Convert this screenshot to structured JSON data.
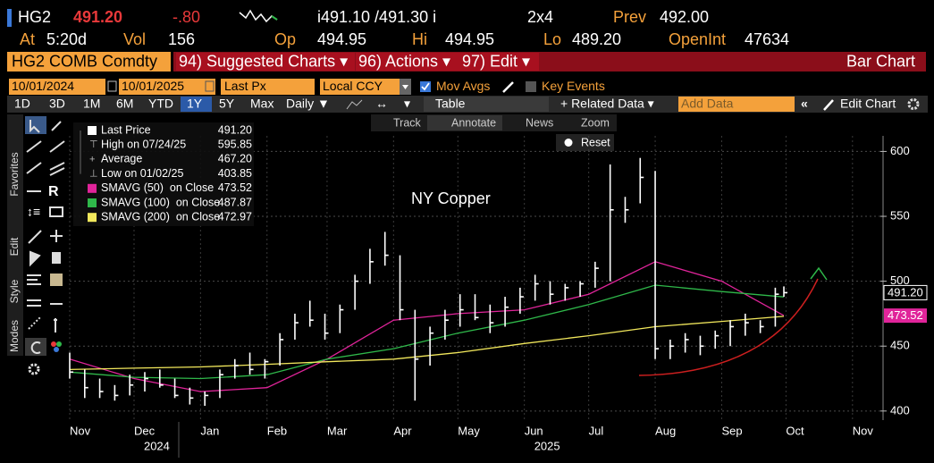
{
  "header": {
    "ticker": "HG2",
    "last": "491.20",
    "change": "-.80",
    "bid_ask": "i491.10 /491.30 i",
    "size": "2x4",
    "prev_label": "Prev",
    "prev": "492.00"
  },
  "stats": [
    {
      "label": "At",
      "value": "5:20d"
    },
    {
      "label": "Vol",
      "value": "156"
    },
    {
      "label": "Op",
      "value": "494.95"
    },
    {
      "label": "Hi",
      "value": "494.95"
    },
    {
      "label": "Lo",
      "value": "489.20"
    },
    {
      "label": "OpenInt",
      "value": "47634"
    }
  ],
  "menu": {
    "security": "HG2 COMB Comdty",
    "items": [
      "94) Suggested Charts ▾",
      "96) Actions ▾",
      "97) Edit ▾"
    ],
    "chart_type": "Bar Chart"
  },
  "params": {
    "start": "10/01/2024",
    "end": "10/01/2025",
    "field": "Last Px",
    "currency": "Local CCY",
    "mov_avgs": "Mov Avgs",
    "key_events": "Key Events"
  },
  "periods": [
    "1D",
    "3D",
    "1M",
    "6M",
    "YTD",
    "1Y",
    "5Y",
    "Max"
  ],
  "active_period": 5,
  "toolbar": {
    "frequency": "Daily ▼",
    "table": "Table",
    "related": "+ Related Data ▾",
    "add_data": "Add Data",
    "edit_chart": "Edit Chart"
  },
  "tools": [
    "Track",
    "Annotate",
    "News",
    "Zoom"
  ],
  "reset": "Reset",
  "side_tabs": [
    "Favorites",
    "Edit",
    "Style",
    "Modes"
  ],
  "chart_data": {
    "type": "ohlc",
    "title": "NY Copper",
    "legend": [
      {
        "name": "Last Price",
        "value": "491.20"
      },
      {
        "name": "High on 07/24/25",
        "value": "595.85"
      },
      {
        "name": "Average",
        "value": "467.20"
      },
      {
        "name": "Low on 01/02/25",
        "value": "403.85"
      }
    ],
    "x": [
      31,
      38,
      45,
      52,
      59,
      66,
      73,
      80,
      87,
      94,
      101,
      108,
      115,
      122,
      129,
      136,
      143,
      150,
      157,
      164,
      171,
      178,
      185,
      192,
      199,
      206,
      213,
      220,
      227,
      234,
      241,
      248,
      255,
      262,
      269,
      276,
      283,
      290,
      297,
      304,
      311,
      318,
      325,
      332,
      339,
      346,
      353,
      360,
      364
    ],
    "series": [
      {
        "name": "Last Price",
        "color": "#ffffff",
        "high": [
          445,
          432,
          425,
          420,
          428,
          430,
          432,
          425,
          418,
          415,
          432,
          440,
          445,
          440,
          460,
          475,
          485,
          475,
          482,
          505,
          525,
          538,
          520,
          478,
          465,
          478,
          490,
          490,
          482,
          488,
          495,
          505,
          500,
          498,
          500,
          515,
          590,
          565,
          595,
          585,
          455,
          460,
          458,
          462,
          470,
          475,
          470,
          495,
          496
        ],
        "low": [
          425,
          410,
          410,
          408,
          412,
          415,
          418,
          410,
          405,
          404,
          410,
          425,
          428,
          425,
          435,
          455,
          465,
          455,
          460,
          478,
          498,
          512,
          470,
          408,
          435,
          455,
          465,
          470,
          460,
          465,
          475,
          485,
          482,
          485,
          488,
          495,
          500,
          545,
          560,
          440,
          440,
          445,
          443,
          448,
          450,
          458,
          460,
          465,
          488
        ],
        "values": [
          430,
          418,
          415,
          412,
          420,
          425,
          420,
          412,
          410,
          412,
          428,
          435,
          432,
          438,
          455,
          468,
          470,
          460,
          478,
          500,
          515,
          520,
          478,
          440,
          460,
          470,
          478,
          472,
          468,
          480,
          488,
          498,
          490,
          495,
          498,
          510,
          555,
          555,
          580,
          448,
          450,
          455,
          450,
          458,
          465,
          468,
          465,
          490,
          491.2
        ]
      }
    ],
    "ma_series": [
      {
        "name": "SMAVG (50)  on Close",
        "legend_value": "473.52",
        "color": "#e0249a",
        "x": [
          31,
          61,
          92,
          123,
          151,
          182,
          212,
          243,
          273,
          304,
          335,
          364
        ],
        "values": [
          440,
          425,
          415,
          418,
          440,
          470,
          475,
          478,
          490,
          515,
          500,
          473.52
        ]
      },
      {
        "name": "SMAVG (100)  on Close",
        "legend_value": "487.87",
        "color": "#2fb84a",
        "x": [
          31,
          61,
          92,
          123,
          151,
          182,
          212,
          243,
          273,
          304,
          335,
          364
        ],
        "values": [
          430,
          426,
          425,
          428,
          440,
          448,
          460,
          470,
          482,
          497,
          492,
          487.87
        ]
      },
      {
        "name": "SMAVG (200)  on Close",
        "legend_value": "472.97",
        "color": "#f2e85c",
        "x": [
          31,
          61,
          92,
          123,
          151,
          182,
          212,
          243,
          273,
          304,
          335,
          364
        ],
        "values": [
          432,
          433,
          434,
          436,
          438,
          440,
          445,
          452,
          458,
          465,
          469,
          472.97
        ]
      }
    ],
    "xlim": [
      31,
      409
    ],
    "ylim": [
      393,
      612
    ],
    "yticks": [
      400,
      450,
      500,
      550,
      600
    ],
    "xticks": [
      {
        "value": 31,
        "label": "Nov"
      },
      {
        "value": 61,
        "label": "Dec"
      },
      {
        "value": 92,
        "label": "Jan"
      },
      {
        "value": 123,
        "label": "Feb"
      },
      {
        "value": 151,
        "label": "Mar"
      },
      {
        "value": 182,
        "label": "Apr"
      },
      {
        "value": 212,
        "label": "May"
      },
      {
        "value": 243,
        "label": "Jun"
      },
      {
        "value": 273,
        "label": "Jul"
      },
      {
        "value": 304,
        "label": "Aug"
      },
      {
        "value": 335,
        "label": "Sep"
      },
      {
        "value": 365,
        "label": "Oct"
      },
      {
        "value": 396,
        "label": "Nov"
      }
    ],
    "year_labels": [
      {
        "value": 61,
        "label": "2024"
      },
      {
        "value": 243,
        "label": "2025"
      }
    ],
    "grid": true
  }
}
